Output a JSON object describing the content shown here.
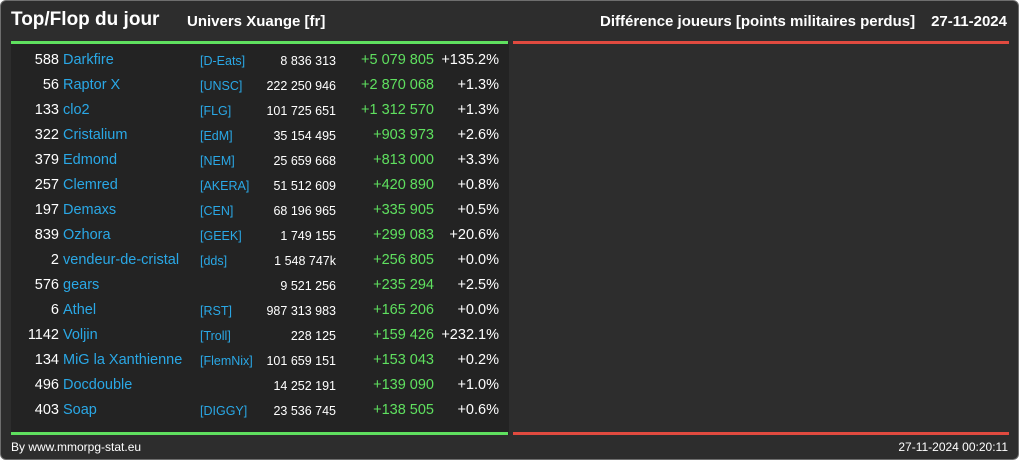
{
  "header": {
    "title": "Top/Flop du jour",
    "universe": "Univers Xuange [fr]",
    "subtitle": "Différence joueurs [points militaires perdus]",
    "date": "27-11-2024"
  },
  "colors": {
    "background": "#2d2d2d",
    "panel": "#232323",
    "link": "#2aa8e6",
    "positive": "#5fe05f",
    "negative_bar": "#e04a3f",
    "text": "#ffffff"
  },
  "rows": [
    {
      "rank": "588",
      "name": "Darkfire",
      "alliance": "[D-Eats]",
      "points": "8 836 313",
      "diff": "+5 079 805",
      "pct": "+135.2%"
    },
    {
      "rank": "56",
      "name": "Raptor X",
      "alliance": "[UNSC]",
      "points": "222 250 946",
      "diff": "+2 870 068",
      "pct": "+1.3%"
    },
    {
      "rank": "133",
      "name": "clo2",
      "alliance": "[FLG]",
      "points": "101 725 651",
      "diff": "+1 312 570",
      "pct": "+1.3%"
    },
    {
      "rank": "322",
      "name": "Cristalium",
      "alliance": "[EdM]",
      "points": "35 154 495",
      "diff": "+903 973",
      "pct": "+2.6%"
    },
    {
      "rank": "379",
      "name": "Edmond",
      "alliance": "[NEM]",
      "points": "25 659 668",
      "diff": "+813 000",
      "pct": "+3.3%"
    },
    {
      "rank": "257",
      "name": "Clemred",
      "alliance": "[AKERA]",
      "points": "51 512 609",
      "diff": "+420 890",
      "pct": "+0.8%"
    },
    {
      "rank": "197",
      "name": "Demaxs",
      "alliance": "[CEN]",
      "points": "68 196 965",
      "diff": "+335 905",
      "pct": "+0.5%"
    },
    {
      "rank": "839",
      "name": "Ozhora",
      "alliance": "[GEEK]",
      "points": "1 749 155",
      "diff": "+299 083",
      "pct": "+20.6%"
    },
    {
      "rank": "2",
      "name": "vendeur-de-cristal",
      "alliance": "[dds]",
      "points": "1 548 747k",
      "diff": "+256 805",
      "pct": "+0.0%"
    },
    {
      "rank": "576",
      "name": "gears",
      "alliance": "",
      "points": "9 521 256",
      "diff": "+235 294",
      "pct": "+2.5%"
    },
    {
      "rank": "6",
      "name": "Athel",
      "alliance": "[RST]",
      "points": "987 313 983",
      "diff": "+165 206",
      "pct": "+0.0%"
    },
    {
      "rank": "1142",
      "name": "Voljin",
      "alliance": "[Troll]",
      "points": "228 125",
      "diff": "+159 426",
      "pct": "+232.1%"
    },
    {
      "rank": "134",
      "name": "MiG la Xanthienne",
      "alliance": "[FlemNix]",
      "points": "101 659 151",
      "diff": "+153 043",
      "pct": "+0.2%"
    },
    {
      "rank": "496",
      "name": "Docdouble",
      "alliance": "",
      "points": "14 252 191",
      "diff": "+139 090",
      "pct": "+1.0%"
    },
    {
      "rank": "403",
      "name": "Soap",
      "alliance": "[DIGGY]",
      "points": "23 536 745",
      "diff": "+138 505",
      "pct": "+0.6%"
    }
  ],
  "footer": {
    "credit": "By www.mmorpg-stat.eu",
    "timestamp": "27-11-2024 00:20:11"
  }
}
